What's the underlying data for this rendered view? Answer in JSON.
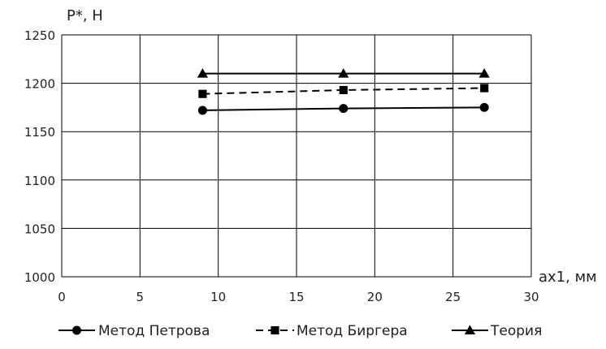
{
  "chart_data": {
    "type": "line",
    "ylabel": "P*, Н",
    "xlabel": "ax1, мм",
    "xlim": [
      0,
      30
    ],
    "ylim": [
      1000,
      1250
    ],
    "x_ticks": [
      0,
      5,
      10,
      15,
      20,
      25,
      30
    ],
    "y_ticks": [
      1000,
      1050,
      1100,
      1150,
      1200,
      1250
    ],
    "grid": true,
    "legend_position": "bottom",
    "series": [
      {
        "name": "Метод Петрова",
        "marker": "circle",
        "line": "solid",
        "x": [
          9,
          18,
          27
        ],
        "y": [
          1172,
          1174,
          1175
        ]
      },
      {
        "name": "Метод Биргера",
        "marker": "square",
        "line": "dashed",
        "x": [
          9,
          18,
          27
        ],
        "y": [
          1189,
          1193,
          1195
        ]
      },
      {
        "name": "Теория",
        "marker": "triangle",
        "line": "solid",
        "x": [
          9,
          18,
          27
        ],
        "y": [
          1210,
          1210,
          1210
        ]
      }
    ],
    "colors": {
      "series": "#000000",
      "grid": "#000000",
      "axis": "#000000",
      "text": "#222222"
    }
  }
}
